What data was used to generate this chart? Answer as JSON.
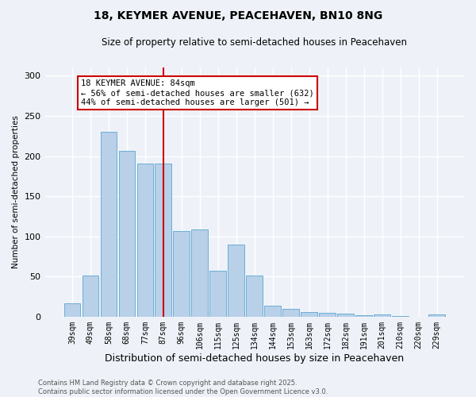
{
  "title": "18, KEYMER AVENUE, PEACEHAVEN, BN10 8NG",
  "subtitle": "Size of property relative to semi-detached houses in Peacehaven",
  "xlabel": "Distribution of semi-detached houses by size in Peacehaven",
  "ylabel": "Number of semi-detached properties",
  "categories": [
    "39sqm",
    "49sqm",
    "58sqm",
    "68sqm",
    "77sqm",
    "87sqm",
    "96sqm",
    "106sqm",
    "115sqm",
    "125sqm",
    "134sqm",
    "144sqm",
    "153sqm",
    "163sqm",
    "172sqm",
    "182sqm",
    "191sqm",
    "201sqm",
    "210sqm",
    "220sqm",
    "229sqm"
  ],
  "values": [
    17,
    51,
    230,
    206,
    191,
    191,
    107,
    109,
    57,
    90,
    51,
    14,
    10,
    6,
    5,
    4,
    2,
    3,
    1,
    0,
    3
  ],
  "bar_color": "#b8d0e8",
  "bar_edge_color": "#6baed6",
  "highlight_index": 5,
  "highlight_line_color": "#cc0000",
  "annotation_box_color": "#cc0000",
  "annotation_text": "18 KEYMER AVENUE: 84sqm\n← 56% of semi-detached houses are smaller (632)\n44% of semi-detached houses are larger (501) →",
  "annotation_fontsize": 7.5,
  "ylim": [
    0,
    310
  ],
  "yticks": [
    0,
    50,
    100,
    150,
    200,
    250,
    300
  ],
  "footnote": "Contains HM Land Registry data © Crown copyright and database right 2025.\nContains public sector information licensed under the Open Government Licence v3.0.",
  "bg_color": "#eef2f8",
  "grid_color": "#ffffff",
  "title_fontsize": 10,
  "subtitle_fontsize": 8.5,
  "xlabel_fontsize": 9,
  "ylabel_fontsize": 7.5
}
